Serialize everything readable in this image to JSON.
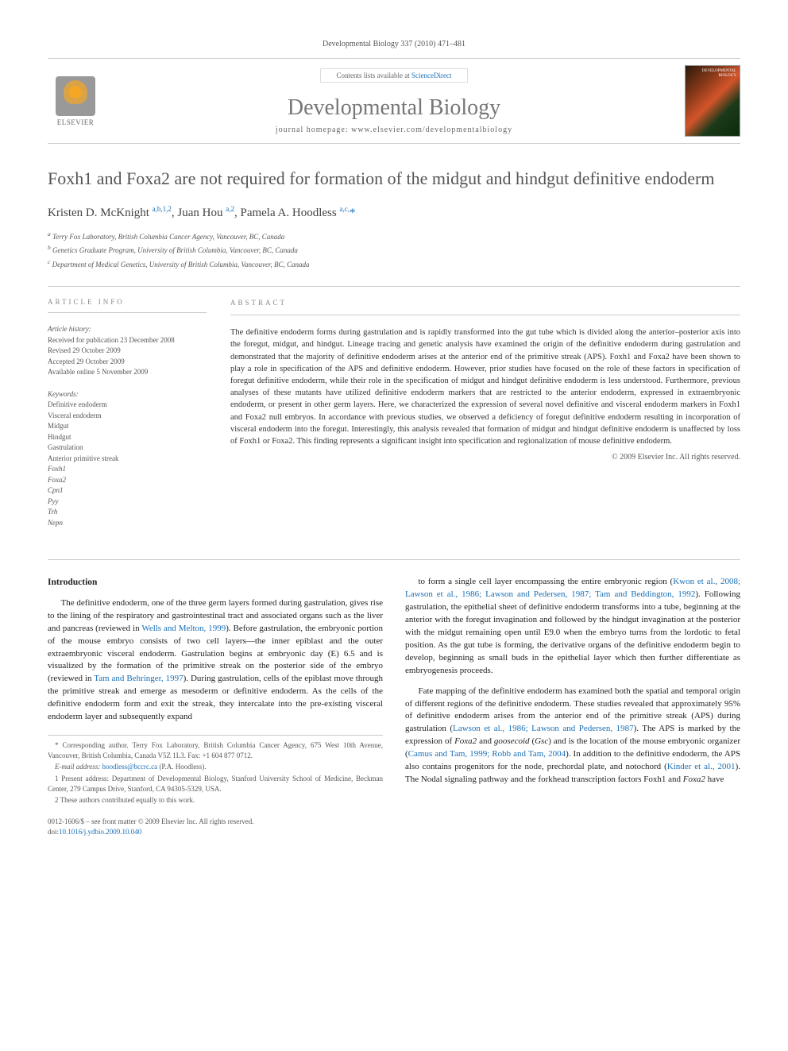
{
  "running_head": "Developmental Biology 337 (2010) 471–481",
  "banner": {
    "elsevier": "ELSEVIER",
    "contents_prefix": "Contents lists available at ",
    "contents_link": "ScienceDirect",
    "journal_name": "Developmental Biology",
    "homepage_label": "journal homepage: ",
    "homepage_url": "www.elsevier.com/developmentalbiology"
  },
  "title": "Foxh1 and Foxa2 are not required for formation of the midgut and hindgut definitive endoderm",
  "authors_html": "Kristen D. McKnight <sup>a,b,1,2</sup>, Juan Hou <sup>a,2</sup>, Pamela A. Hoodless <sup>a,c,</sup><span class='star'>*</span>",
  "affiliations": [
    "a Terry Fox Laboratory, British Columbia Cancer Agency, Vancouver, BC, Canada",
    "b Genetics Graduate Program, University of British Columbia, Vancouver, BC, Canada",
    "c Department of Medical Genetics, University of British Columbia, Vancouver, BC, Canada"
  ],
  "info": {
    "head": "ARTICLE INFO",
    "history_label": "Article history:",
    "history": [
      "Received for publication 23 December 2008",
      "Revised 29 October 2009",
      "Accepted 29 October 2009",
      "Available online 5 November 2009"
    ],
    "keywords_label": "Keywords:",
    "keywords": [
      "Definitive endoderm",
      "Visceral endoderm",
      "Midgut",
      "Hindgut",
      "Gastrulation",
      "Anterior primitive streak",
      "Foxh1",
      "Foxa2",
      "Cpn1",
      "Pyy",
      "Trh",
      "Nepn"
    ]
  },
  "abstract": {
    "head": "ABSTRACT",
    "text": "The definitive endoderm forms during gastrulation and is rapidly transformed into the gut tube which is divided along the anterior–posterior axis into the foregut, midgut, and hindgut. Lineage tracing and genetic analysis have examined the origin of the definitive endoderm during gastrulation and demonstrated that the majority of definitive endoderm arises at the anterior end of the primitive streak (APS). Foxh1 and Foxa2 have been shown to play a role in specification of the APS and definitive endoderm. However, prior studies have focused on the role of these factors in specification of foregut definitive endoderm, while their role in the specification of midgut and hindgut definitive endoderm is less understood. Furthermore, previous analyses of these mutants have utilized definitive endoderm markers that are restricted to the anterior endoderm, expressed in extraembryonic endoderm, or present in other germ layers. Here, we characterized the expression of several novel definitive and visceral endoderm markers in Foxh1 and Foxa2 null embryos. In accordance with previous studies, we observed a deficiency of foregut definitive endoderm resulting in incorporation of visceral endoderm into the foregut. Interestingly, this analysis revealed that formation of midgut and hindgut definitive endoderm is unaffected by loss of Foxh1 or Foxa2. This finding represents a significant insight into specification and regionalization of mouse definitive endoderm.",
    "copyright": "© 2009 Elsevier Inc. All rights reserved."
  },
  "body": {
    "intro_head": "Introduction",
    "p1": "The definitive endoderm, one of the three germ layers formed during gastrulation, gives rise to the lining of the respiratory and gastrointestinal tract and associated organs such as the liver and pancreas (reviewed in Wells and Melton, 1999). Before gastrulation, the embryonic portion of the mouse embryo consists of two cell layers—the inner epiblast and the outer extraembryonic visceral endoderm. Gastrulation begins at embryonic day (E) 6.5 and is visualized by the formation of the primitive streak on the posterior side of the embryo (reviewed in Tam and Behringer, 1997). During gastrulation, cells of the epiblast move through the primitive streak and emerge as mesoderm or definitive endoderm. As the cells of the definitive endoderm form and exit the streak, they intercalate into the pre-existing visceral endoderm layer and subsequently expand",
    "p2": "to form a single cell layer encompassing the entire embryonic region (Kwon et al., 2008; Lawson et al., 1986; Lawson and Pedersen, 1987; Tam and Beddington, 1992). Following gastrulation, the epithelial sheet of definitive endoderm transforms into a tube, beginning at the anterior with the foregut invagination and followed by the hindgut invagination at the posterior with the midgut remaining open until E9.0 when the embryo turns from the lordotic to fetal position. As the gut tube is forming, the derivative organs of the definitive endoderm begin to develop, beginning as small buds in the epithelial layer which then further differentiate as embryogenesis proceeds.",
    "p3": "Fate mapping of the definitive endoderm has examined both the spatial and temporal origin of different regions of the definitive endoderm. These studies revealed that approximately 95% of definitive endoderm arises from the anterior end of the primitive streak (APS) during gastrulation (Lawson et al., 1986; Lawson and Pedersen, 1987). The APS is marked by the expression of Foxa2 and goosecoid (Gsc) and is the location of the mouse embryonic organizer (Camus and Tam, 1999; Robb and Tam, 2004). In addition to the definitive endoderm, the APS also contains progenitors for the node, prechordal plate, and notochord (Kinder et al., 2001). The Nodal signaling pathway and the forkhead transcription factors Foxh1 and Foxa2 have"
  },
  "footnotes": {
    "corr": "* Corresponding author. Terry Fox Laboratory, British Columbia Cancer Agency, 675 West 10th Avenue, Vancouver, British Columbia, Canada V5Z 1L3. Fax: +1 604 877 0712.",
    "email_label": "E-mail address: ",
    "email": "hoodless@bccrc.ca",
    "email_suffix": " (P.A. Hoodless).",
    "n1": "1 Present address: Department of Developmental Biology, Stanford University School of Medicine, Beckman Center, 279 Campus Drive, Stanford, CA 94305-5329, USA.",
    "n2": "2 These authors contributed equally to this work."
  },
  "bottom": {
    "front": "0012-1606/$ – see front matter © 2009 Elsevier Inc. All rights reserved.",
    "doi_label": "doi:",
    "doi": "10.1016/j.ydbio.2009.10.040"
  },
  "colors": {
    "link": "#1a6fb5",
    "text": "#333333",
    "muted": "#666666",
    "rule": "#cccccc"
  }
}
